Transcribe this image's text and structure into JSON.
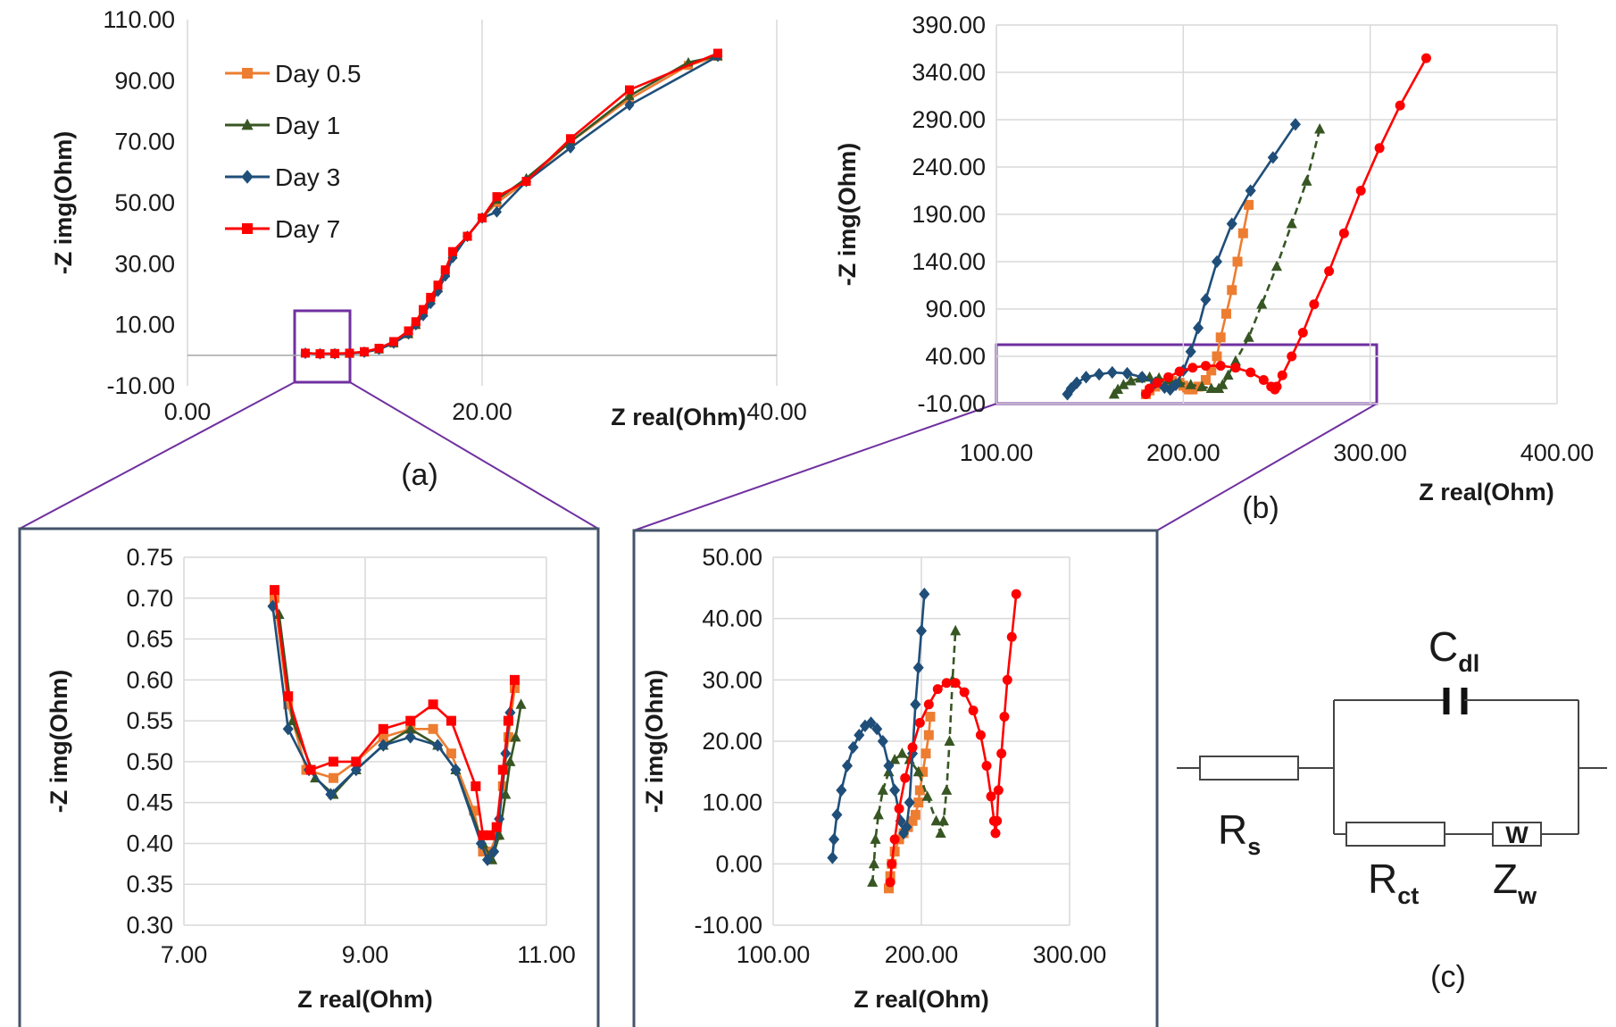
{
  "colors": {
    "day05": "#ED7D31",
    "day1": "#375623",
    "day3": "#1F4E79",
    "day7": "#FF0000",
    "callout": "#7030A0",
    "inset_border": "#44546A",
    "grid": "#D9D9D9"
  },
  "legend": [
    "Day 0.5",
    "Day 1",
    "Day 3",
    "Day 7"
  ],
  "panel_labels": {
    "a": "(a)",
    "b": "(b)",
    "c": "(c)"
  },
  "circuit": {
    "rs": "R",
    "rs_sub": "s",
    "cdl": "C",
    "cdl_sub": "dl",
    "rct": "R",
    "rct_sub": "ct",
    "zw": "Z",
    "zw_sub": "w",
    "w_box": "W"
  },
  "chart_data": [
    {
      "id": "a",
      "type": "scatter",
      "title": "",
      "xlabel": "Z real(Ohm)",
      "ylabel": "-Z img(Ohm)",
      "xlim": [
        0,
        40
      ],
      "ylim": [
        -10,
        110
      ],
      "xticks": [
        "0.00",
        "20.00",
        "40.00"
      ],
      "yticks": [
        "-10.00",
        "10.00",
        "30.00",
        "50.00",
        "70.00",
        "90.00",
        "110.00"
      ],
      "grid": "vertical",
      "legend_position": "top-left",
      "series": [
        {
          "name": "Day 0.5",
          "color": "#ED7D31",
          "marker": "square",
          "x": [
            8,
            9,
            10,
            11,
            12,
            13,
            14,
            15,
            15.5,
            16,
            16.5,
            17,
            17.5,
            18,
            19,
            20,
            21,
            23,
            26,
            30,
            34,
            36
          ],
          "y": [
            0.7,
            0.5,
            0.5,
            0.6,
            1,
            2,
            4,
            7,
            10,
            14,
            18,
            22,
            27,
            33,
            39,
            45,
            50,
            57,
            70,
            84,
            95,
            98
          ]
        },
        {
          "name": "Day 1",
          "color": "#375623",
          "marker": "triangle",
          "x": [
            8,
            9,
            10,
            11,
            12,
            13,
            14,
            15,
            15.5,
            16,
            16.5,
            17,
            17.5,
            18,
            19,
            20,
            21,
            23,
            26,
            30,
            34,
            36
          ],
          "y": [
            0.7,
            0.5,
            0.5,
            0.6,
            1,
            2,
            4,
            7,
            10,
            14,
            18,
            22,
            27,
            33,
            39,
            45,
            51,
            58,
            70,
            85,
            96,
            98
          ]
        },
        {
          "name": "Day 3",
          "color": "#1F4E79",
          "marker": "diamond",
          "x": [
            8,
            9,
            10,
            11,
            12,
            13,
            14,
            15,
            15.5,
            16,
            16.5,
            17,
            17.5,
            18,
            19,
            20,
            21,
            23,
            26,
            30,
            36
          ],
          "y": [
            0.7,
            0.5,
            0.5,
            0.6,
            1,
            2,
            4,
            7,
            10,
            13,
            17,
            21,
            26,
            32,
            39,
            45,
            47,
            57,
            68,
            82,
            98
          ]
        },
        {
          "name": "Day 7",
          "color": "#FF0000",
          "marker": "square",
          "x": [
            8,
            9,
            10,
            11,
            12,
            13,
            14,
            15,
            15.5,
            16,
            16.5,
            17,
            17.5,
            18,
            19,
            20,
            21,
            23,
            26,
            30,
            36
          ],
          "y": [
            0.7,
            0.5,
            0.6,
            0.7,
            1.2,
            2.3,
            4.5,
            8,
            11,
            15,
            19,
            23,
            28,
            34,
            39,
            45,
            52,
            57,
            71,
            87,
            99
          ]
        }
      ]
    },
    {
      "id": "a-inset",
      "type": "scatter",
      "title": "",
      "xlabel": "Z real(Ohm)",
      "ylabel": "-Z img(Ohm)",
      "xlim": [
        7,
        11
      ],
      "ylim": [
        0.3,
        0.75
      ],
      "xticks": [
        "7.00",
        "9.00",
        "11.00"
      ],
      "yticks": [
        "0.30",
        "0.35",
        "0.40",
        "0.45",
        "0.50",
        "0.55",
        "0.60",
        "0.65",
        "0.70",
        "0.75"
      ],
      "grid": "both",
      "series": [
        {
          "name": "Day 0.5",
          "color": "#ED7D31",
          "marker": "square",
          "x": [
            8.0,
            8.15,
            8.35,
            8.65,
            8.9,
            9.2,
            9.5,
            9.75,
            9.95,
            10.2,
            10.3,
            10.38,
            10.45,
            10.52,
            10.58,
            10.65
          ],
          "y": [
            0.7,
            0.57,
            0.49,
            0.48,
            0.5,
            0.53,
            0.54,
            0.54,
            0.51,
            0.44,
            0.39,
            0.39,
            0.41,
            0.47,
            0.53,
            0.59
          ]
        },
        {
          "name": "Day 1",
          "color": "#375623",
          "marker": "triangle",
          "x": [
            8.05,
            8.2,
            8.45,
            8.65,
            8.9,
            9.2,
            9.5,
            9.8,
            10.0,
            10.3,
            10.4,
            10.48,
            10.55,
            10.6,
            10.66,
            10.72
          ],
          "y": [
            0.68,
            0.55,
            0.48,
            0.46,
            0.49,
            0.52,
            0.54,
            0.52,
            0.49,
            0.4,
            0.38,
            0.41,
            0.46,
            0.5,
            0.53,
            0.57
          ]
        },
        {
          "name": "Day 3",
          "color": "#1F4E79",
          "marker": "diamond",
          "x": [
            7.98,
            8.15,
            8.38,
            8.62,
            8.9,
            9.2,
            9.5,
            9.8,
            10.0,
            10.28,
            10.35,
            10.42,
            10.48,
            10.55,
            10.6
          ],
          "y": [
            0.69,
            0.54,
            0.49,
            0.46,
            0.49,
            0.52,
            0.53,
            0.52,
            0.49,
            0.4,
            0.38,
            0.39,
            0.43,
            0.51,
            0.56
          ]
        },
        {
          "name": "Day 7",
          "color": "#FF0000",
          "marker": "square",
          "x": [
            8.0,
            8.15,
            8.4,
            8.65,
            8.9,
            9.2,
            9.5,
            9.75,
            9.95,
            10.22,
            10.3,
            10.38,
            10.45,
            10.52,
            10.58,
            10.65
          ],
          "y": [
            0.71,
            0.58,
            0.49,
            0.5,
            0.5,
            0.54,
            0.55,
            0.57,
            0.55,
            0.47,
            0.41,
            0.41,
            0.42,
            0.49,
            0.55,
            0.6
          ]
        }
      ]
    },
    {
      "id": "b",
      "type": "scatter",
      "title": "",
      "xlabel": "Z real(Ohm)",
      "ylabel": "-Z img(Ohm)",
      "xlim": [
        100,
        400
      ],
      "ylim": [
        -10,
        390
      ],
      "xticks": [
        "100.00",
        "200.00",
        "300.00",
        "400.00"
      ],
      "yticks": [
        "-10.00",
        "40.00",
        "90.00",
        "140.00",
        "190.00",
        "240.00",
        "290.00",
        "340.00",
        "390.00"
      ],
      "grid": "both",
      "series": [
        {
          "name": "Day 0.5",
          "color": "#ED7D31",
          "marker": "square",
          "x": [
            180,
            182,
            185,
            190,
            194,
            198,
            200,
            202,
            203,
            205,
            208,
            212,
            215,
            218,
            220,
            223,
            226,
            229,
            232,
            235
          ],
          "y": [
            0,
            4,
            8,
            12,
            14,
            12,
            9,
            7,
            5,
            5,
            8,
            15,
            25,
            40,
            60,
            85,
            110,
            140,
            170,
            200
          ]
        },
        {
          "name": "Day 1",
          "color": "#375623",
          "marker": "triangle",
          "x": [
            163,
            165,
            168,
            172,
            177,
            182,
            187,
            192,
            198,
            204,
            210,
            215,
            219,
            221,
            224,
            228,
            235,
            242,
            250,
            258,
            266,
            273
          ],
          "y": [
            0,
            5,
            10,
            14,
            17,
            18,
            17,
            15,
            12,
            10,
            8,
            6,
            6,
            10,
            20,
            35,
            60,
            95,
            135,
            180,
            225,
            280
          ]
        },
        {
          "name": "Day 3",
          "color": "#1F4E79",
          "marker": "diamond",
          "x": [
            138,
            140,
            143,
            148,
            155,
            162,
            170,
            178,
            185,
            190,
            193,
            196,
            200,
            204,
            208,
            212,
            218,
            226,
            236,
            248,
            260
          ],
          "y": [
            0,
            6,
            12,
            18,
            21,
            23,
            22,
            18,
            12,
            7,
            5,
            10,
            25,
            45,
            70,
            100,
            140,
            180,
            215,
            250,
            285
          ]
        },
        {
          "name": "Day 7",
          "color": "#FF0000",
          "marker": "circle",
          "x": [
            180,
            182,
            186,
            192,
            198,
            205,
            212,
            220,
            228,
            236,
            243,
            247,
            249,
            250,
            253,
            258,
            264,
            270,
            278,
            286,
            295,
            305,
            316,
            330
          ],
          "y": [
            0,
            6,
            12,
            18,
            24,
            28,
            30,
            30,
            28,
            23,
            15,
            8,
            5,
            8,
            20,
            40,
            65,
            95,
            130,
            170,
            215,
            260,
            305,
            355
          ]
        }
      ]
    },
    {
      "id": "b-inset",
      "type": "scatter",
      "title": "",
      "xlabel": "Z real(Ohm)",
      "ylabel": "-Z img(Ohm)",
      "xlim": [
        100,
        300
      ],
      "ylim": [
        -10,
        50
      ],
      "xticks": [
        "100.00",
        "200.00",
        "300.00"
      ],
      "yticks": [
        "-10.00",
        "0.00",
        "10.00",
        "20.00",
        "30.00",
        "40.00",
        "50.00"
      ],
      "grid": "both",
      "series": [
        {
          "name": "Day 0.5",
          "color": "#ED7D31",
          "marker": "square",
          "x": [
            178,
            179,
            180,
            182,
            185,
            188,
            191,
            194,
            196,
            198,
            199,
            201,
            203,
            205,
            206
          ],
          "y": [
            -4,
            -2,
            0,
            2,
            4,
            5,
            6,
            7,
            8,
            10,
            12,
            15,
            18,
            21,
            24
          ]
        },
        {
          "name": "Day 1",
          "color": "#375623",
          "marker": "triangle",
          "x": [
            167,
            168,
            169,
            171,
            174,
            178,
            182,
            187,
            192,
            198,
            204,
            210,
            213,
            215,
            217,
            219,
            221,
            223
          ],
          "y": [
            -3,
            0,
            4,
            8,
            12,
            15,
            17,
            18,
            17,
            15,
            11,
            7,
            5,
            7,
            12,
            20,
            30,
            38
          ]
        },
        {
          "name": "Day 3",
          "color": "#1F4E79",
          "marker": "diamond",
          "x": [
            140,
            141,
            143,
            146,
            150,
            154,
            158,
            162,
            166,
            170,
            174,
            178,
            182,
            186,
            188,
            190,
            192,
            194,
            196,
            198,
            200,
            202
          ],
          "y": [
            1,
            4,
            8,
            12,
            16,
            19,
            21,
            22.5,
            23,
            22,
            20,
            16,
            12,
            7,
            5,
            6,
            10,
            18,
            26,
            32,
            38,
            44
          ]
        },
        {
          "name": "Day 7",
          "color": "#FF0000",
          "marker": "circle",
          "x": [
            179,
            180,
            182,
            185,
            189,
            194,
            199,
            205,
            211,
            217,
            223,
            229,
            235,
            240,
            244,
            247,
            249,
            250,
            251,
            252,
            254,
            256,
            258,
            261,
            264
          ],
          "y": [
            -3,
            0,
            4,
            9,
            14,
            19,
            23,
            26,
            28.5,
            29.5,
            29.5,
            28,
            25,
            21,
            16,
            11,
            7,
            5,
            7,
            12,
            18,
            24,
            30,
            37,
            44
          ]
        }
      ]
    }
  ]
}
